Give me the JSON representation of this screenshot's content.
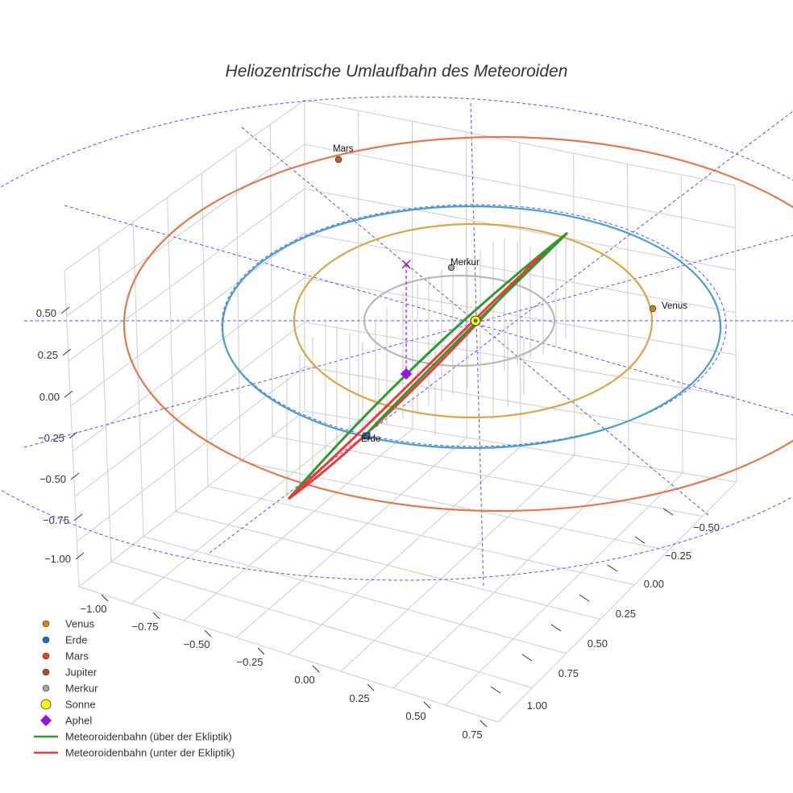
{
  "chart_data": {
    "type": "scatter3d",
    "title": "Heliozentrische Umlaufbahn des Meteoroiden",
    "axes": {
      "x_ticks": [
        "−1.00",
        "−0.75",
        "−0.50",
        "−0.25",
        "0.00",
        "0.25",
        "0.50",
        "0.75"
      ],
      "y_ticks": [
        "−0.50",
        "−0.25",
        "0.00",
        "0.25",
        "0.50",
        "0.75",
        "1.00"
      ],
      "z_ticks": [
        "0.50",
        "0.25",
        "0.00",
        "−0.25",
        "−0.50",
        "−0.75",
        "−1.00"
      ]
    },
    "orbits": [
      {
        "name": "Merkur",
        "color": "#b8b8b8",
        "a_au": 0.39
      },
      {
        "name": "Venus",
        "color": "#d4a84a",
        "a_au": 0.72
      },
      {
        "name": "Erde",
        "color": "#4a9ec8",
        "a_au": 1.0
      },
      {
        "name": "Mars",
        "color": "#e07850",
        "a_au": 1.52
      }
    ],
    "planet_labels": [
      {
        "name": "Mars",
        "color": "#cc5a1e"
      },
      {
        "name": "Merkur",
        "color": "#a89f98"
      },
      {
        "name": "Venus",
        "color": "#c98a1a"
      },
      {
        "name": "Erde",
        "color": "#1f6fb4"
      }
    ],
    "meteoroid": {
      "above_label": "Meteoroidenbahn (über der Ekliptik)",
      "below_label": "Meteoroidenbahn (unter der Ekliptik)",
      "above_color": "#2e9a2e",
      "below_color": "#ee3a3a"
    },
    "aphel_color": "#9b10e0",
    "sun_color": "#ffff00"
  },
  "legend": [
    {
      "label": "Venus",
      "type": "dot",
      "color": "#c98a1a"
    },
    {
      "label": "Erde",
      "type": "dot",
      "color": "#1f6fb4"
    },
    {
      "label": "Mars",
      "type": "dot",
      "color": "#d84a1e"
    },
    {
      "label": "Jupiter",
      "type": "dot",
      "color": "#a0522d"
    },
    {
      "label": "Merkur",
      "type": "dot",
      "color": "#a89f98"
    },
    {
      "label": "Sonne",
      "type": "sun",
      "color": "#ffff00"
    },
    {
      "label": "Aphel",
      "type": "diamond",
      "color": "#9b10e0"
    },
    {
      "label": "Meteoroidenbahn (über der Ekliptik)",
      "type": "line",
      "color": "#2e9a2e"
    },
    {
      "label": "Meteoroidenbahn (unter der Ekliptik)",
      "type": "line",
      "color": "#ee3a3a"
    }
  ]
}
